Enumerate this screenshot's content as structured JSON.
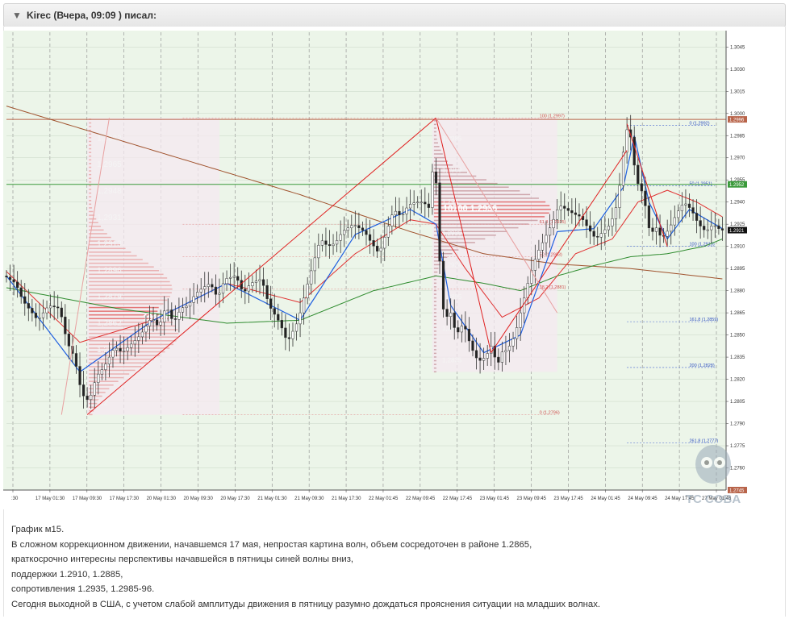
{
  "post": {
    "header": "Kirec (Вчера, 09:09 ) писал:",
    "lines": [
      "График м15.",
      "В сложном коррекционном движении, начавшемся 17 мая, непростая картина волн, объем сосредоточен в районе 1.2865,",
      "краткосрочно интересны перспективы начавшейся в пятницы синей волны вниз,",
      "поддержки 1.2910, 1.2885,",
      "сопротивления 1.2935, 1.2985-96.",
      "Сегодня выходной в США, с учетом слабой амплитуды движения в пятницу разумно дождаться прояснения ситуации на младших волнах."
    ]
  },
  "watermark": "TC COBA",
  "chart_data": {
    "type": "candlestick",
    "background": "#ecf5e9",
    "ylim": [
      1.2745,
      1.3055
    ],
    "y_ticks": [
      "1.3045",
      "1.3030",
      "1.3015",
      "1.3000",
      "1.2985",
      "1.2970",
      "1.2955",
      "1.2940",
      "1.2925",
      "1.2910",
      "1.2895",
      "1.2880",
      "1.2865",
      "1.2850",
      "1.2835",
      "1.2820",
      "1.2805",
      "1.2790",
      "1.2775",
      "1.2760"
    ],
    "x_labels": [
      ":30",
      "17 May 01:30",
      "17 May 09:30",
      "17 May 17:30",
      "20 May 01:30",
      "20 May 09:30",
      "20 May 17:30",
      "21 May 01:30",
      "21 May 09:30",
      "21 May 17:30",
      "22 May 01:45",
      "22 May 09:45",
      "22 May 17:45",
      "23 May 01:45",
      "23 May 09:45",
      "23 May 17:45",
      "24 May 01:45",
      "24 May 09:45",
      "24 May 17:45",
      "27 May 01:45"
    ],
    "hlines": [
      {
        "price": "1.2996",
        "value": 1.2996,
        "color": "#b8644a"
      },
      {
        "price": "1.2952",
        "value": 1.2952,
        "color": "#3a9a3a"
      },
      {
        "price": "1.2745",
        "value": 1.2745,
        "color": "#b8644a"
      }
    ],
    "current_price": {
      "label": "1.2921",
      "value": 1.2921
    },
    "volume_profiles": [
      {
        "big_label": "19200",
        "poc": 1.2865,
        "levels": [
          "1,2982",
          "1,2965",
          "1,2948",
          "1,2931",
          "1,2913",
          "1,2896",
          "1,2879",
          "1,2862",
          "1,2844",
          "1,2",
          "1,2"
        ]
      },
      {
        "big_label": "10700  1.2936",
        "poc": 1.2936,
        "levels": [
          "1,2985",
          "1,2969",
          "1,294",
          "1,2935",
          "1,2924",
          "1,2895",
          "1,2865",
          "1,2835"
        ]
      }
    ],
    "fib_left": [
      {
        "label": "100 (1,2997)",
        "value": 1.2997
      },
      {
        "label": "61,8 (1,2925)",
        "value": 1.2925
      },
      {
        "label": "50 (1,2903)",
        "value": 1.2903
      },
      {
        "label": "38,2 (1,2881)",
        "value": 1.2881
      },
      {
        "label": "0 (1,2796)",
        "value": 1.2796
      }
    ],
    "fib_right": [
      {
        "label": "0 (1,2992)",
        "value": 1.2992
      },
      {
        "label": "50 (1,2951)",
        "value": 1.2951
      },
      {
        "label": "100 (1,2910)",
        "value": 1.291
      },
      {
        "label": "161,8 (1,2859)",
        "value": 1.2859
      },
      {
        "label": "200 (1,2828)",
        "value": 1.2828
      },
      {
        "label": "261,8 (1,2777)",
        "value": 1.2777
      }
    ],
    "candle_anchors": [
      [
        0,
        1.289
      ],
      [
        3,
        1.2885
      ],
      [
        5,
        1.2873
      ],
      [
        9,
        1.286
      ],
      [
        12,
        1.287
      ],
      [
        15,
        1.2868
      ],
      [
        17,
        1.2845
      ],
      [
        19,
        1.2835
      ],
      [
        21,
        1.281
      ],
      [
        23,
        1.2805
      ],
      [
        25,
        1.2822
      ],
      [
        27,
        1.2828
      ],
      [
        30,
        1.2842
      ],
      [
        32,
        1.2838
      ],
      [
        35,
        1.2845
      ],
      [
        37,
        1.285
      ],
      [
        40,
        1.2862
      ],
      [
        42,
        1.2855
      ],
      [
        44,
        1.287
      ],
      [
        46,
        1.2858
      ],
      [
        48,
        1.2868
      ],
      [
        50,
        1.287
      ],
      [
        52,
        1.2878
      ],
      [
        54,
        1.2882
      ],
      [
        56,
        1.2885
      ],
      [
        58,
        1.2875
      ],
      [
        60,
        1.2888
      ],
      [
        63,
        1.289
      ],
      [
        65,
        1.2878
      ],
      [
        67,
        1.2885
      ],
      [
        70,
        1.2888
      ],
      [
        72,
        1.287
      ],
      [
        75,
        1.2858
      ],
      [
        77,
        1.2845
      ],
      [
        80,
        1.286
      ],
      [
        82,
        1.288
      ],
      [
        84,
        1.2898
      ],
      [
        86,
        1.2915
      ],
      [
        88,
        1.291
      ],
      [
        90,
        1.2912
      ],
      [
        92,
        1.292
      ],
      [
        95,
        1.2925
      ],
      [
        98,
        1.292
      ],
      [
        100,
        1.2912
      ],
      [
        102,
        1.2905
      ],
      [
        104,
        1.292
      ],
      [
        106,
        1.2935
      ],
      [
        108,
        1.293
      ],
      [
        110,
        1.2938
      ],
      [
        112,
        1.294
      ],
      [
        114,
        1.294
      ],
      [
        116,
        1.2935
      ],
      [
        117,
        1.2986
      ],
      [
        118,
        1.292
      ],
      [
        119,
        1.288
      ],
      [
        120,
        1.2855
      ],
      [
        121,
        1.287
      ],
      [
        123,
        1.285
      ],
      [
        125,
        1.2858
      ],
      [
        127,
        1.2842
      ],
      [
        129,
        1.2832
      ],
      [
        131,
        1.2835
      ],
      [
        133,
        1.2845
      ],
      [
        134,
        1.2825
      ],
      [
        135,
        1.2838
      ],
      [
        137,
        1.284
      ],
      [
        139,
        1.285
      ],
      [
        141,
        1.287
      ],
      [
        143,
        1.289
      ],
      [
        145,
        1.2905
      ],
      [
        147,
        1.2915
      ],
      [
        149,
        1.2925
      ],
      [
        151,
        1.2938
      ],
      [
        153,
        1.2935
      ],
      [
        155,
        1.2932
      ],
      [
        157,
        1.293
      ],
      [
        159,
        1.2922
      ],
      [
        161,
        1.2915
      ],
      [
        163,
        1.292
      ],
      [
        165,
        1.2925
      ],
      [
        167,
        1.294
      ],
      [
        169,
        1.2985
      ],
      [
        170,
        1.2993
      ],
      [
        171,
        1.2975
      ],
      [
        172,
        1.2955
      ],
      [
        174,
        1.2945
      ],
      [
        175,
        1.293
      ],
      [
        176,
        1.2915
      ],
      [
        177,
        1.2925
      ],
      [
        179,
        1.2915
      ],
      [
        181,
        1.2922
      ],
      [
        183,
        1.2932
      ],
      [
        185,
        1.294
      ],
      [
        187,
        1.2935
      ],
      [
        189,
        1.2925
      ],
      [
        191,
        1.292
      ],
      [
        193,
        1.2925
      ],
      [
        195,
        1.2921
      ]
    ],
    "ma_red": [
      [
        0,
        1.2893
      ],
      [
        20,
        1.2845
      ],
      [
        40,
        1.286
      ],
      [
        60,
        1.2885
      ],
      [
        80,
        1.2872
      ],
      [
        95,
        1.2905
      ],
      [
        110,
        1.2928
      ],
      [
        117,
        1.2925
      ],
      [
        125,
        1.2895
      ],
      [
        135,
        1.2862
      ],
      [
        145,
        1.2875
      ],
      [
        155,
        1.2905
      ],
      [
        165,
        1.2915
      ],
      [
        172,
        1.294
      ],
      [
        180,
        1.2948
      ],
      [
        188,
        1.294
      ],
      [
        195,
        1.293
      ]
    ],
    "ma_blue": [
      [
        0,
        1.289
      ],
      [
        20,
        1.2825
      ],
      [
        40,
        1.286
      ],
      [
        60,
        1.2885
      ],
      [
        80,
        1.286
      ],
      [
        95,
        1.2918
      ],
      [
        110,
        1.2935
      ],
      [
        117,
        1.2925
      ],
      [
        121,
        1.287
      ],
      [
        130,
        1.2838
      ],
      [
        140,
        1.285
      ],
      [
        150,
        1.292
      ],
      [
        160,
        1.2922
      ],
      [
        168,
        1.295
      ],
      [
        171,
        1.2985
      ],
      [
        175,
        1.294
      ],
      [
        180,
        1.2915
      ],
      [
        186,
        1.2935
      ],
      [
        195,
        1.2922
      ]
    ],
    "ma_green": [
      [
        0,
        1.2882
      ],
      [
        30,
        1.2868
      ],
      [
        60,
        1.2858
      ],
      [
        80,
        1.286
      ],
      [
        100,
        1.288
      ],
      [
        117,
        1.289
      ],
      [
        130,
        1.2885
      ],
      [
        140,
        1.288
      ],
      [
        150,
        1.289
      ],
      [
        160,
        1.2897
      ],
      [
        170,
        1.2903
      ],
      [
        180,
        1.2905
      ],
      [
        190,
        1.291
      ],
      [
        195,
        1.2915
      ]
    ],
    "ma_brown": [
      [
        0,
        1.3005
      ],
      [
        40,
        1.2975
      ],
      [
        80,
        1.2945
      ],
      [
        110,
        1.292
      ],
      [
        130,
        1.2905
      ],
      [
        150,
        1.2898
      ],
      [
        170,
        1.2895
      ],
      [
        195,
        1.2888
      ]
    ],
    "wave_lines": [
      {
        "color": "#e02020",
        "points": [
          [
            22,
            1.2796
          ],
          [
            117,
            1.2997
          ]
        ]
      },
      {
        "color": "#e02020",
        "points": [
          [
            117,
            1.2997
          ],
          [
            132,
            1.2838
          ]
        ]
      },
      {
        "color": "#e02020",
        "points": [
          [
            132,
            1.2838
          ],
          [
            169,
            1.2975
          ]
        ]
      },
      {
        "color": "#e8a0a0",
        "points": [
          [
            15,
            1.2796
          ],
          [
            28,
            1.2997
          ]
        ]
      },
      {
        "color": "#e8a0a0",
        "points": [
          [
            117,
            1.2997
          ],
          [
            150,
            1.2865
          ]
        ]
      },
      {
        "color": "#e02020",
        "points": [
          [
            169,
            1.2993
          ],
          [
            180,
            1.291
          ]
        ]
      }
    ]
  }
}
